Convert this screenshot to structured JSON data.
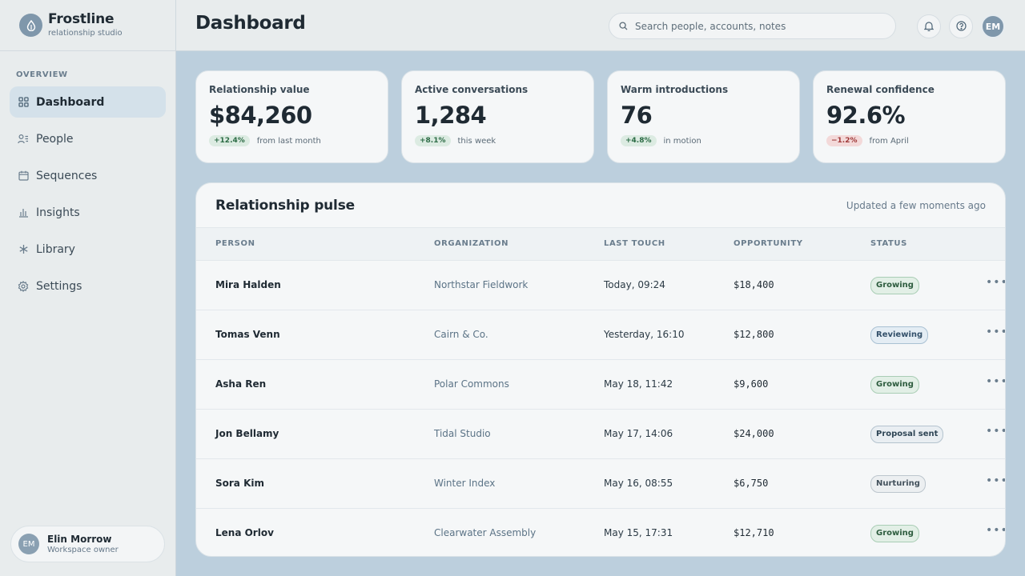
{
  "brand": {
    "name": "Frostline",
    "subtitle": "relationship studio"
  },
  "sidebar": {
    "section": "OVERVIEW",
    "items": [
      {
        "label": "Dashboard",
        "icon": "grid-icon",
        "active": true
      },
      {
        "label": "People",
        "icon": "people-icon",
        "active": false
      },
      {
        "label": "Sequences",
        "icon": "calendar-icon",
        "active": false
      },
      {
        "label": "Insights",
        "icon": "bar-chart-icon",
        "active": false
      },
      {
        "label": "Library",
        "icon": "asterisk-icon",
        "active": false
      },
      {
        "label": "Settings",
        "icon": "gear-icon",
        "active": false
      }
    ],
    "user": {
      "initials": "EM",
      "name": "Elin Morrow",
      "role": "Workspace owner"
    }
  },
  "header": {
    "title": "Dashboard",
    "search_placeholder": "Search people, accounts, notes",
    "avatar_initials": "EM"
  },
  "stats": [
    {
      "label": "Relationship value",
      "value": "$84,260",
      "change": "+12.4%",
      "trend": "up",
      "note": "from last month"
    },
    {
      "label": "Active conversations",
      "value": "1,284",
      "change": "+8.1%",
      "trend": "up",
      "note": "this week"
    },
    {
      "label": "Warm introductions",
      "value": "76",
      "change": "+4.8%",
      "trend": "up",
      "note": "in motion"
    },
    {
      "label": "Renewal confidence",
      "value": "92.6%",
      "change": "−1.2%",
      "trend": "down",
      "note": "from April"
    }
  ],
  "pulse": {
    "title": "Relationship pulse",
    "updated": "Updated a few moments ago",
    "columns": [
      "PERSON",
      "ORGANIZATION",
      "LAST TOUCH",
      "OPPORTUNITY",
      "STATUS"
    ],
    "rows": [
      {
        "person": "Mira Halden",
        "org": "Northstar Fieldwork",
        "touch": "Today, 09:24",
        "opp": "$18,400",
        "status": "Growing"
      },
      {
        "person": "Tomas Venn",
        "org": "Cairn & Co.",
        "touch": "Yesterday, 16:10",
        "opp": "$12,800",
        "status": "Reviewing"
      },
      {
        "person": "Asha Ren",
        "org": "Polar Commons",
        "touch": "May 18, 11:42",
        "opp": "$9,600",
        "status": "Growing"
      },
      {
        "person": "Jon Bellamy",
        "org": "Tidal Studio",
        "touch": "May 17, 14:06",
        "opp": "$24,000",
        "status": "Proposal sent"
      },
      {
        "person": "Sora Kim",
        "org": "Winter Index",
        "touch": "May 16, 08:55",
        "opp": "$6,750",
        "status": "Nurturing"
      },
      {
        "person": "Lena Orlov",
        "org": "Clearwater Assembly",
        "touch": "May 15, 17:31",
        "opp": "$12,710",
        "status": "Growing"
      }
    ],
    "more_icon": "more-horizontal-icon"
  },
  "colors": {
    "accent": "#7f97ab",
    "positive": "#2c6b45",
    "negative": "#a03a3a",
    "canvas": "#bccfdd"
  }
}
